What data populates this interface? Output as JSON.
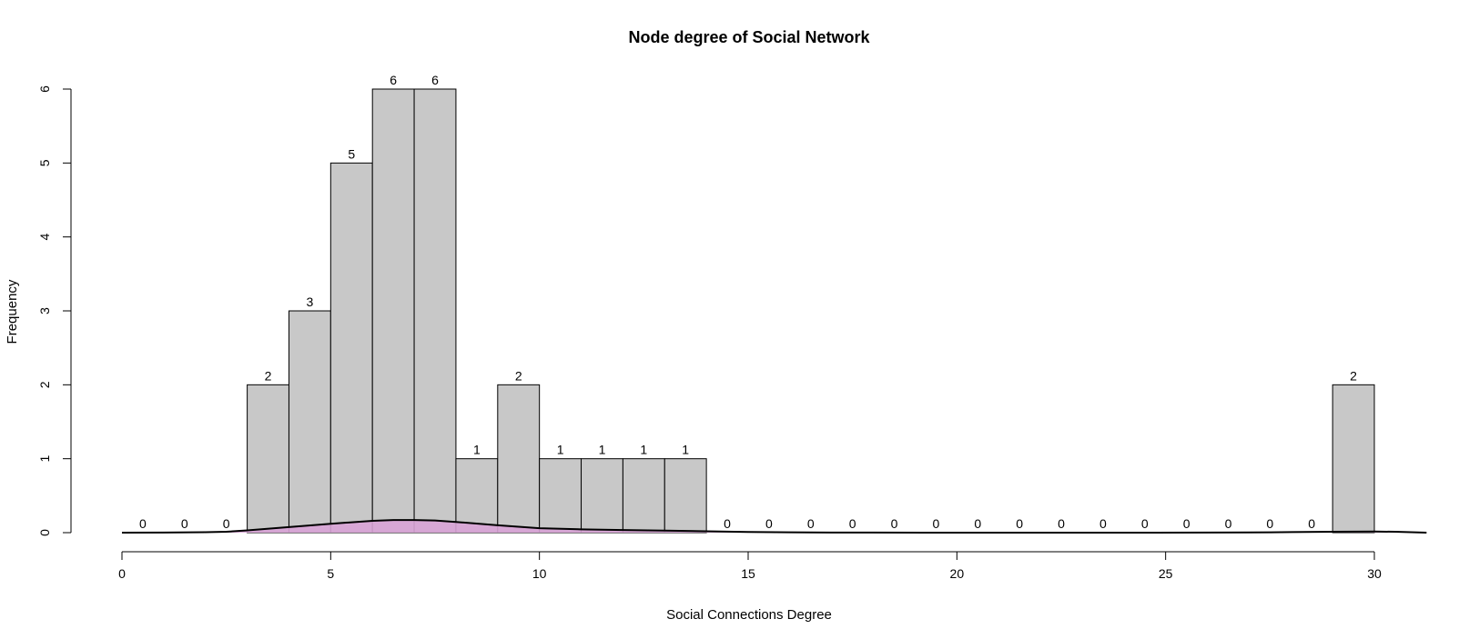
{
  "chart_data": {
    "type": "bar",
    "title": "Node degree of Social Network",
    "xlabel": "Social Connections Degree",
    "ylabel": "Frequency",
    "bin_edges": [
      0,
      1,
      2,
      3,
      4,
      5,
      6,
      7,
      8,
      9,
      10,
      11,
      12,
      13,
      14,
      15,
      16,
      17,
      18,
      19,
      20,
      21,
      22,
      23,
      24,
      25,
      26,
      27,
      28,
      29,
      30
    ],
    "values": [
      0,
      0,
      0,
      2,
      3,
      5,
      6,
      6,
      1,
      2,
      1,
      1,
      1,
      1,
      0,
      0,
      0,
      0,
      0,
      0,
      0,
      0,
      0,
      0,
      0,
      0,
      0,
      0,
      0,
      2
    ],
    "xlim": [
      0,
      31.25
    ],
    "ylim": [
      0,
      6
    ],
    "x_ticks": [
      0,
      5,
      10,
      15,
      20,
      25,
      30
    ],
    "y_ticks": [
      0,
      1,
      2,
      3,
      4,
      5,
      6
    ],
    "bar_color": "#c8c8c8",
    "bar_border_color": "#000000",
    "density_fill_color": "#d8a3d6",
    "density_line_color": "#000000",
    "density_curve": {
      "x": [
        0,
        1,
        2,
        2.5,
        3,
        4,
        5,
        6,
        6.5,
        7,
        7.5,
        8,
        9,
        10,
        11,
        12,
        13,
        14,
        15,
        16,
        17,
        18,
        20,
        22,
        24,
        26,
        27,
        28,
        29,
        29.5,
        30,
        30.5,
        31.25
      ],
      "y": [
        0,
        0.002,
        0.006,
        0.012,
        0.03,
        0.075,
        0.12,
        0.16,
        0.17,
        0.17,
        0.165,
        0.145,
        0.1,
        0.06,
        0.045,
        0.035,
        0.028,
        0.018,
        0.009,
        0.004,
        0.002,
        0.001,
        0,
        0,
        0,
        0.001,
        0.003,
        0.007,
        0.012,
        0.014,
        0.015,
        0.012,
        0
      ]
    }
  }
}
